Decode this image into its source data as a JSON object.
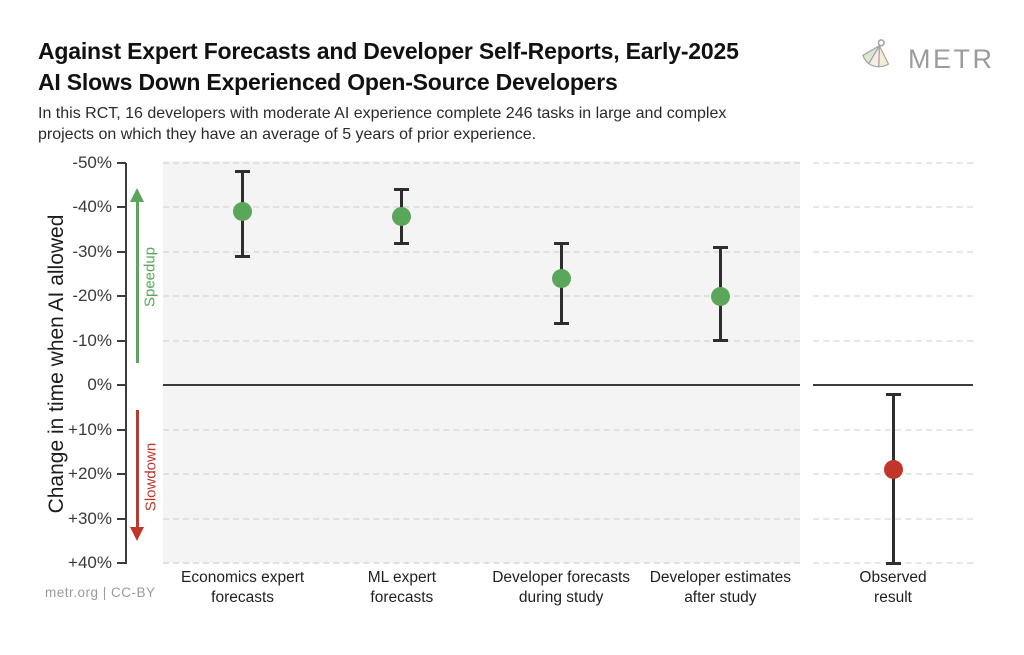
{
  "header": {
    "title_line1": "Against Expert Forecasts and Developer Self-Reports, Early-2025",
    "title_line2": "AI Slows Down Experienced Open-Source Developers",
    "subtitle_line1": "In this RCT, 16 developers with moderate AI experience complete 246 tasks in large and complex",
    "subtitle_line2": "projects on which they have an average of 5 years of prior experience.",
    "logo_text": "METR"
  },
  "footer": {
    "credit": "metr.org  |  CC-BY"
  },
  "colors": {
    "speedup_green": "#5aa65a",
    "slowdown_red": "#c0362b",
    "error_bar": "#2e2e2e",
    "axis": "#3c3c3c",
    "panel_bg": "#f4f4f4",
    "gridline": "#e0e0e0"
  },
  "chart_data": {
    "type": "scatter",
    "title": "Against Expert Forecasts and Developer Self-Reports, Early-2025 AI Slows Down Experienced Open-Source Developers",
    "xlabel": "",
    "ylabel": "Change in time when AI allowed",
    "ylim": [
      -50,
      40
    ],
    "y_orientation": "negative-up",
    "grid": "dashed horizontal every 10%",
    "zero_value": 0,
    "yticks": [
      {
        "value": -50,
        "label": "-50%"
      },
      {
        "value": -40,
        "label": "-40%"
      },
      {
        "value": -30,
        "label": "-30%"
      },
      {
        "value": -20,
        "label": "-20%"
      },
      {
        "value": -10,
        "label": "-10%"
      },
      {
        "value": 0,
        "label": "0%"
      },
      {
        "value": 10,
        "label": "+10%"
      },
      {
        "value": 20,
        "label": "+20%"
      },
      {
        "value": 30,
        "label": "+30%"
      },
      {
        "value": 40,
        "label": "+40%"
      }
    ],
    "annotations": {
      "speedup": {
        "label": "Speedup",
        "direction": "up",
        "color": "#5aa65a"
      },
      "slowdown": {
        "label": "Slowdown",
        "direction": "down",
        "color": "#c0362b"
      }
    },
    "categories": [
      "Economics expert forecasts",
      "ML expert forecasts",
      "Developer forecasts during study",
      "Developer estimates after study",
      "Observed result"
    ],
    "points": [
      {
        "label_line1": "Economics expert",
        "label_line2": "forecasts",
        "value": -39,
        "ci_upper": -48,
        "ci_lower": -29,
        "panel": "main",
        "color": "#5aa65a"
      },
      {
        "label_line1": "ML expert",
        "label_line2": "forecasts",
        "value": -38,
        "ci_upper": -44,
        "ci_lower": -32,
        "panel": "main",
        "color": "#5aa65a"
      },
      {
        "label_line1": "Developer forecasts",
        "label_line2": "during study",
        "value": -24,
        "ci_upper": -32,
        "ci_lower": -14,
        "panel": "main",
        "color": "#5aa65a"
      },
      {
        "label_line1": "Developer estimates",
        "label_line2": "after study",
        "value": -20,
        "ci_upper": -31,
        "ci_lower": -10,
        "panel": "main",
        "color": "#5aa65a"
      },
      {
        "label_line1": "Observed",
        "label_line2": "result",
        "value": 19,
        "ci_upper": 2,
        "ci_lower": 40,
        "panel": "observed",
        "color": "#c0362b"
      }
    ]
  }
}
